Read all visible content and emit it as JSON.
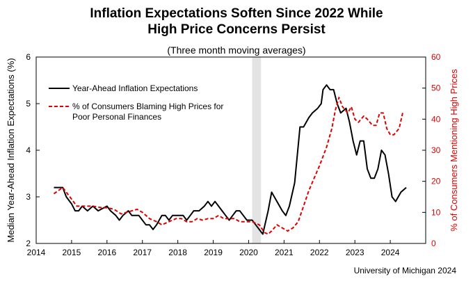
{
  "title_line1": "Inflation Expectations Soften Since 2022 While",
  "title_line2": "High Price Concerns Persist",
  "subtitle": "(Three month moving averages)",
  "source": "University of Michigan 2024",
  "chart_data": {
    "type": "line",
    "xlim": [
      2014,
      2025
    ],
    "x_ticks": [
      "2014",
      "2015",
      "2016",
      "2017",
      "2018",
      "2019",
      "2020",
      "2021",
      "2022",
      "2023",
      "2024"
    ],
    "ylabel_left": "Median Year-Ahead Inflation Expectations (%)",
    "ylabel_right": "% of Consumers  Mentioning High Prices",
    "ylim_left": [
      2,
      6
    ],
    "ylim_right": [
      0,
      60
    ],
    "y_ticks_left": [
      "2",
      "3",
      "4",
      "5",
      "6"
    ],
    "y_ticks_right": [
      "0",
      "10",
      "20",
      "30",
      "40",
      "50",
      "60"
    ],
    "shaded_region": [
      2020.1,
      2020.35
    ],
    "legend_position": "upper-left",
    "colors": {
      "expectations": "#000000",
      "high_prices": "#e00000",
      "shade": "#e3e3e3",
      "right_axis": "#e00000"
    },
    "series": [
      {
        "name": "Year-Ahead Inflation Expectations",
        "axis": "left",
        "style": "solid",
        "points": [
          [
            2014.5,
            3.2
          ],
          [
            2014.75,
            3.2
          ],
          [
            2014.85,
            3.0
          ],
          [
            2015.0,
            2.85
          ],
          [
            2015.1,
            2.7
          ],
          [
            2015.2,
            2.7
          ],
          [
            2015.3,
            2.8
          ],
          [
            2015.45,
            2.7
          ],
          [
            2015.6,
            2.8
          ],
          [
            2015.75,
            2.7
          ],
          [
            2016.0,
            2.8
          ],
          [
            2016.1,
            2.7
          ],
          [
            2016.25,
            2.6
          ],
          [
            2016.35,
            2.5
          ],
          [
            2016.45,
            2.6
          ],
          [
            2016.6,
            2.7
          ],
          [
            2016.7,
            2.6
          ],
          [
            2016.9,
            2.6
          ],
          [
            2017.0,
            2.5
          ],
          [
            2017.1,
            2.4
          ],
          [
            2017.2,
            2.4
          ],
          [
            2017.3,
            2.3
          ],
          [
            2017.4,
            2.4
          ],
          [
            2017.55,
            2.6
          ],
          [
            2017.65,
            2.6
          ],
          [
            2017.75,
            2.5
          ],
          [
            2017.85,
            2.6
          ],
          [
            2018.0,
            2.6
          ],
          [
            2018.15,
            2.6
          ],
          [
            2018.25,
            2.5
          ],
          [
            2018.35,
            2.6
          ],
          [
            2018.45,
            2.7
          ],
          [
            2018.6,
            2.7
          ],
          [
            2018.75,
            2.8
          ],
          [
            2018.85,
            2.9
          ],
          [
            2018.95,
            2.8
          ],
          [
            2019.05,
            2.9
          ],
          [
            2019.15,
            2.8
          ],
          [
            2019.25,
            2.7
          ],
          [
            2019.35,
            2.6
          ],
          [
            2019.45,
            2.5
          ],
          [
            2019.55,
            2.6
          ],
          [
            2019.65,
            2.7
          ],
          [
            2019.75,
            2.7
          ],
          [
            2019.85,
            2.6
          ],
          [
            2019.95,
            2.5
          ],
          [
            2020.1,
            2.5
          ],
          [
            2020.2,
            2.4
          ],
          [
            2020.4,
            2.2
          ],
          [
            2020.55,
            2.7
          ],
          [
            2020.65,
            3.1
          ],
          [
            2020.8,
            2.9
          ],
          [
            2020.95,
            2.7
          ],
          [
            2021.05,
            2.6
          ],
          [
            2021.15,
            2.8
          ],
          [
            2021.3,
            3.3
          ],
          [
            2021.45,
            4.5
          ],
          [
            2021.55,
            4.5
          ],
          [
            2021.7,
            4.7
          ],
          [
            2021.8,
            4.8
          ],
          [
            2021.95,
            4.9
          ],
          [
            2022.05,
            5.0
          ],
          [
            2022.1,
            5.3
          ],
          [
            2022.2,
            5.4
          ],
          [
            2022.3,
            5.3
          ],
          [
            2022.4,
            5.3
          ],
          [
            2022.5,
            5.0
          ],
          [
            2022.6,
            4.8
          ],
          [
            2022.75,
            4.9
          ],
          [
            2022.85,
            4.6
          ],
          [
            2022.95,
            4.2
          ],
          [
            2023.05,
            3.9
          ],
          [
            2023.15,
            4.2
          ],
          [
            2023.25,
            4.2
          ],
          [
            2023.35,
            3.6
          ],
          [
            2023.45,
            3.4
          ],
          [
            2023.55,
            3.4
          ],
          [
            2023.65,
            3.6
          ],
          [
            2023.75,
            4.0
          ],
          [
            2023.85,
            3.9
          ],
          [
            2023.95,
            3.5
          ],
          [
            2024.05,
            3.0
          ],
          [
            2024.15,
            2.9
          ],
          [
            2024.3,
            3.1
          ],
          [
            2024.45,
            3.2
          ]
        ]
      },
      {
        "name": "% of Consumers Blaming High Prices for Poor Personal Finances",
        "axis": "right",
        "style": "dashed",
        "points": [
          [
            2014.5,
            16
          ],
          [
            2014.75,
            18
          ],
          [
            2014.95,
            15
          ],
          [
            2015.15,
            12
          ],
          [
            2015.4,
            12
          ],
          [
            2015.6,
            12
          ],
          [
            2015.85,
            11.5
          ],
          [
            2016.0,
            11.5
          ],
          [
            2016.2,
            11
          ],
          [
            2016.4,
            9.5
          ],
          [
            2016.55,
            10
          ],
          [
            2016.7,
            10.5
          ],
          [
            2016.85,
            11
          ],
          [
            2017.0,
            10
          ],
          [
            2017.2,
            8
          ],
          [
            2017.4,
            7
          ],
          [
            2017.55,
            6
          ],
          [
            2017.75,
            7
          ],
          [
            2017.95,
            8
          ],
          [
            2018.1,
            8
          ],
          [
            2018.25,
            7
          ],
          [
            2018.4,
            7
          ],
          [
            2018.55,
            8
          ],
          [
            2018.7,
            7.5
          ],
          [
            2018.85,
            8
          ],
          [
            2019.0,
            8
          ],
          [
            2019.15,
            9
          ],
          [
            2019.3,
            8
          ],
          [
            2019.45,
            8
          ],
          [
            2019.6,
            8
          ],
          [
            2019.75,
            7
          ],
          [
            2019.95,
            7
          ],
          [
            2020.1,
            7
          ],
          [
            2020.3,
            6
          ],
          [
            2020.45,
            3.5
          ],
          [
            2020.55,
            3
          ],
          [
            2020.65,
            4
          ],
          [
            2020.8,
            6
          ],
          [
            2020.95,
            5
          ],
          [
            2021.1,
            4
          ],
          [
            2021.25,
            5
          ],
          [
            2021.4,
            7
          ],
          [
            2021.55,
            12
          ],
          [
            2021.7,
            17
          ],
          [
            2021.85,
            21
          ],
          [
            2022.0,
            25
          ],
          [
            2022.2,
            31
          ],
          [
            2022.35,
            37
          ],
          [
            2022.45,
            43
          ],
          [
            2022.55,
            47
          ],
          [
            2022.65,
            44
          ],
          [
            2022.8,
            42
          ],
          [
            2022.9,
            44
          ],
          [
            2023.0,
            40
          ],
          [
            2023.1,
            39
          ],
          [
            2023.25,
            41
          ],
          [
            2023.35,
            40
          ],
          [
            2023.5,
            38
          ],
          [
            2023.6,
            38
          ],
          [
            2023.7,
            42
          ],
          [
            2023.8,
            42
          ],
          [
            2023.9,
            37
          ],
          [
            2024.0,
            35
          ],
          [
            2024.1,
            35
          ],
          [
            2024.25,
            37
          ],
          [
            2024.35,
            42
          ]
        ]
      }
    ]
  }
}
